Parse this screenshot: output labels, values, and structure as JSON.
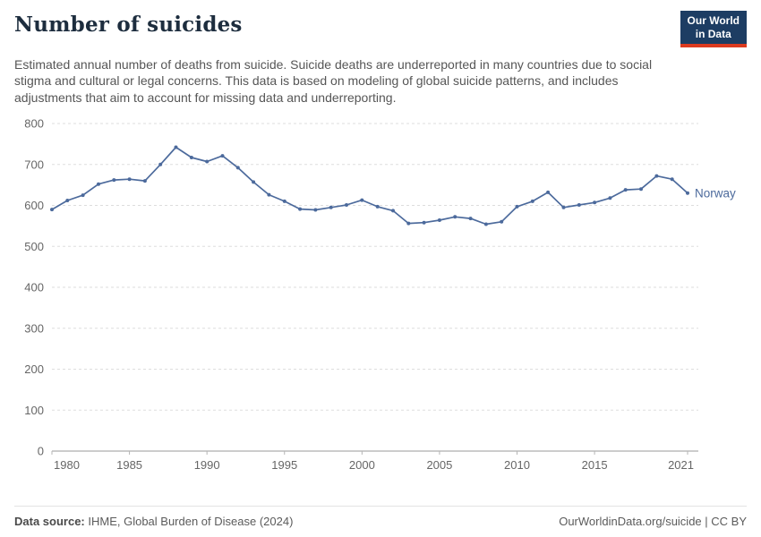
{
  "header": {
    "title": "Number of suicides",
    "logo": {
      "line1": "Our World",
      "line2": "in Data",
      "bg_color": "#1d3d63",
      "accent_color": "#dc3a1f"
    }
  },
  "subtitle": "Estimated annual number of deaths from suicide. Suicide deaths are underreported in many countries due to social stigma and cultural or legal concerns. This data is based on modeling of global suicide patterns, and includes adjustments that aim to account for missing data and underreporting.",
  "chart_data": {
    "type": "line",
    "title": "Number of suicides",
    "xlabel": "",
    "ylabel": "",
    "xlim": [
      1980,
      2021
    ],
    "ylim": [
      0,
      800
    ],
    "x_ticks": [
      1980,
      1985,
      1990,
      1995,
      2000,
      2005,
      2010,
      2015,
      2021
    ],
    "y_ticks": [
      0,
      100,
      200,
      300,
      400,
      500,
      600,
      700,
      800
    ],
    "grid": "dashed-horizontal",
    "legend_position": "end-of-line",
    "series": [
      {
        "name": "Norway",
        "color": "#4c6a9c",
        "x": [
          1980,
          1981,
          1982,
          1983,
          1984,
          1985,
          1986,
          1987,
          1988,
          1989,
          1990,
          1991,
          1992,
          1993,
          1994,
          1995,
          1996,
          1997,
          1998,
          1999,
          2000,
          2001,
          2002,
          2003,
          2004,
          2005,
          2006,
          2007,
          2008,
          2009,
          2010,
          2011,
          2012,
          2013,
          2014,
          2015,
          2016,
          2017,
          2018,
          2019,
          2020,
          2021
        ],
        "values": [
          590,
          612,
          625,
          652,
          662,
          664,
          660,
          700,
          742,
          717,
          707,
          721,
          692,
          657,
          626,
          610,
          591,
          589,
          595,
          601,
          613,
          597,
          587,
          556,
          558,
          564,
          572,
          568,
          554,
          560,
          597,
          610,
          632,
          595,
          601,
          607,
          618,
          638,
          640,
          672,
          664,
          630
        ]
      }
    ]
  },
  "footer": {
    "source_label": "Data source:",
    "source_text": " IHME, Global Burden of Disease (2024)",
    "right_text": "OurWorldinData.org/suicide | CC BY"
  }
}
